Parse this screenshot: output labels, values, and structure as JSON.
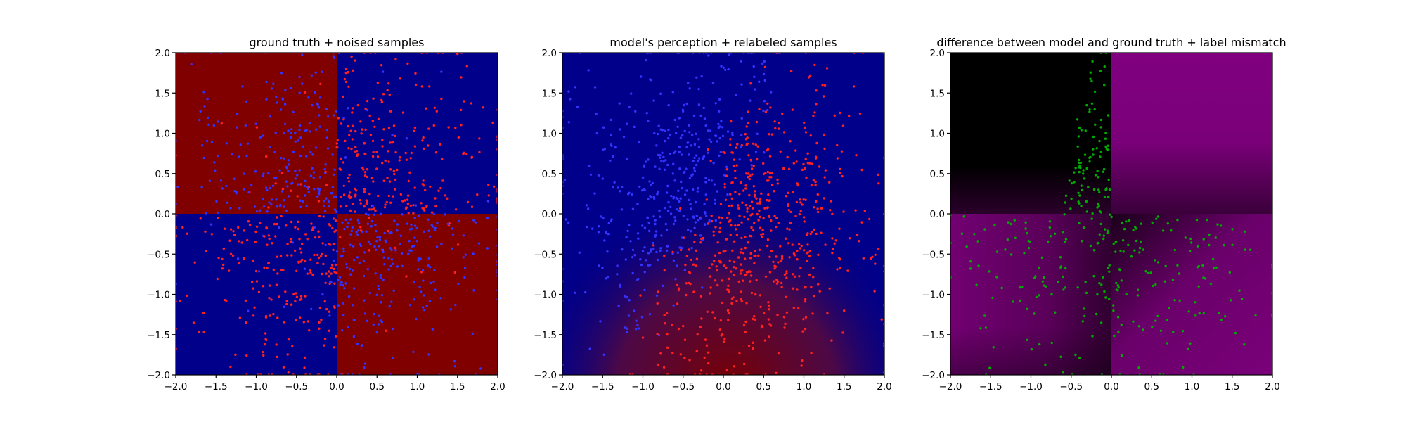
{
  "chart_data": [
    {
      "type": "heatmap",
      "title": "ground truth + noised samples",
      "xlim": [
        -2.0,
        2.0
      ],
      "ylim": [
        -2.0,
        2.0
      ],
      "xticks": [
        "−2.0",
        "−1.5",
        "−1.0",
        "−0.5",
        "0.0",
        "0.5",
        "1.0",
        "1.5",
        "2.0"
      ],
      "yticks": [
        "−2.0",
        "−1.5",
        "−1.0",
        "−0.5",
        "0.0",
        "0.5",
        "1.0",
        "1.5",
        "2.0"
      ],
      "grid": false,
      "background": "quadrants: top-left red, top-right blue, bottom-left blue, bottom-right red",
      "quadrant_colors": {
        "red": "#800000",
        "blue": "#00008b"
      },
      "scatter_series": [
        {
          "color": "#ff2020",
          "count": 500,
          "distribution": "mostly in blue quadrants (top-right, bottom-left)"
        },
        {
          "color": "#3333ff",
          "count": 500,
          "distribution": "mostly in red quadrants (top-left, bottom-right)"
        }
      ]
    },
    {
      "type": "heatmap",
      "title": "model's perception + relabeled samples",
      "xlim": [
        -2.0,
        2.0
      ],
      "ylim": [
        -2.0,
        2.0
      ],
      "xticks": [
        "−2.0",
        "−1.5",
        "−1.0",
        "−0.5",
        "0.0",
        "0.5",
        "1.0",
        "1.5",
        "2.0"
      ],
      "yticks": [
        "−2.0",
        "−1.5",
        "−1.0",
        "−0.5",
        "0.0",
        "0.5",
        "1.0",
        "1.5",
        "2.0"
      ],
      "grid": false,
      "background": "blue in upper half, fading to dark red toward bottom-center",
      "scatter_series": [
        {
          "color": "#3333ff",
          "count": 460,
          "distribution": "left-center cluster"
        },
        {
          "color": "#ff2020",
          "count": 560,
          "distribution": "spread across, dense bottom-center-right"
        }
      ]
    },
    {
      "type": "heatmap",
      "title": "difference between model and ground truth + label mismatch",
      "xlim": [
        -2.0,
        2.0
      ],
      "ylim": [
        -2.0,
        2.0
      ],
      "xticks": [
        "−2.0",
        "−1.5",
        "−1.0",
        "−0.5",
        "0.0",
        "0.5",
        "1.0",
        "1.5",
        "2.0"
      ],
      "yticks": [
        "−2.0",
        "−1.5",
        "−1.0",
        "−0.5",
        "0.0",
        "0.5",
        "1.0",
        "1.5",
        "2.0"
      ],
      "grid": false,
      "background": "top-left black, top-right purple, bottom quadrants purple fading to black",
      "colors": {
        "purple": "#800080",
        "black": "#000000"
      },
      "scatter_series": [
        {
          "color": "#00aa00",
          "count": 420,
          "distribution": "top-left arc near x=-0.5..0, and lower half"
        }
      ]
    }
  ]
}
